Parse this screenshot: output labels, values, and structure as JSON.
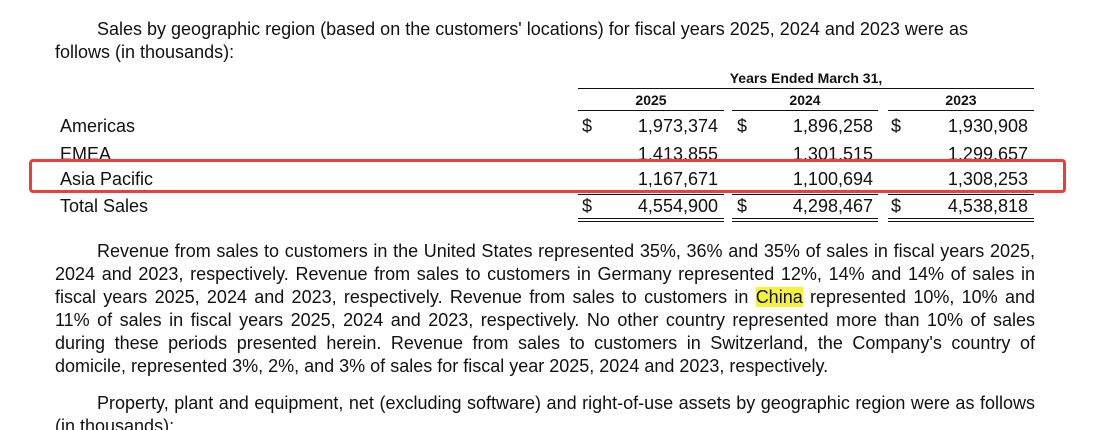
{
  "intro": {
    "line1": "Sales by geographic region (based on the customers' locations) for fiscal years 2025, 2024 and 2023 were as",
    "line2": "follows (in thousands):"
  },
  "table": {
    "header_span": "Years Ended March 31,",
    "years": [
      "2025",
      "2024",
      "2023"
    ],
    "currency_symbol": "$",
    "rows": [
      {
        "label": "Americas",
        "values": [
          "1,973,374",
          "1,896,258",
          "1,930,908"
        ]
      },
      {
        "label": "EMEA",
        "values": [
          "1,413,855",
          "1,301,515",
          "1,299,657"
        ]
      },
      {
        "label": "Asia Pacific",
        "values": [
          "1,167,671",
          "1,100,694",
          "1,308,253"
        ]
      },
      {
        "label": "Total Sales",
        "values": [
          "4,554,900",
          "4,298,467",
          "4,538,818"
        ]
      }
    ],
    "highlighted_row": "Asia Pacific",
    "highlight_color": "#e8413c"
  },
  "revenue_paragraph": {
    "before": "Revenue from sales to customers in the United States represented 35%, 36% and 35% of sales in fiscal years 2025, 2024 and 2023, respectively. Revenue from sales to customers in Germany represented 12%, 14% and 14% of sales in fiscal years 2025, 2024 and 2023, respectively. Revenue from sales to customers in ",
    "highlight": "China",
    "after": " represented 10%, 10% and 11% of sales in fiscal years 2025, 2024 and 2023, respectively. No other country represented more than 10% of sales during these periods presented herein. Revenue from sales to customers in Switzerland, the Company's country of domicile, represented 3%, 2%, and 3% of sales for fiscal year 2025, 2024 and 2023, respectively.",
    "highlight_color": "#f6f23b"
  },
  "ppe_paragraph": {
    "text": "Property, plant and equipment, net (excluding software) and right-of-use assets by geographic region were as follows (in thousands):"
  }
}
